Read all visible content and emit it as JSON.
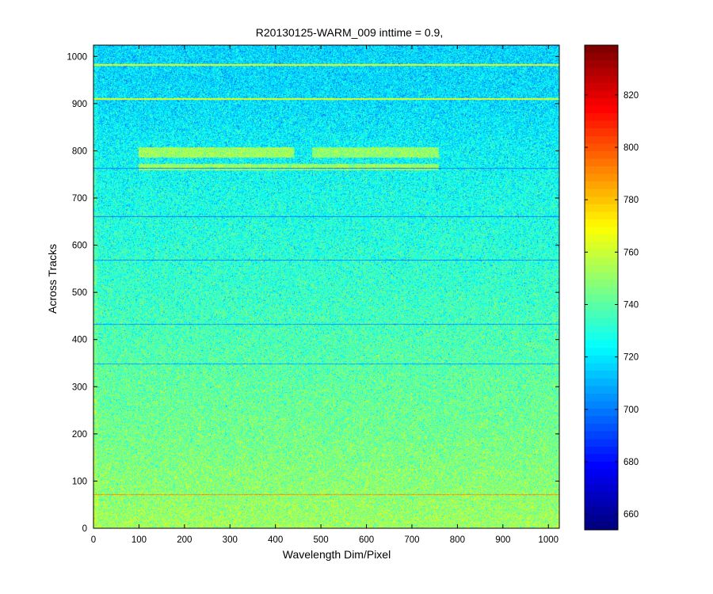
{
  "chart_data": {
    "type": "heatmap",
    "title": "R20130125-WARM_009 inttime = 0.9,",
    "xlabel": "Wavelength Dim/Pixel",
    "ylabel": "Across Tracks",
    "xlim": [
      0,
      1024
    ],
    "ylim": [
      0,
      1024
    ],
    "x_ticks": [
      "0",
      "100",
      "200",
      "300",
      "400",
      "500",
      "600",
      "700",
      "800",
      "900",
      "1000"
    ],
    "y_ticks": [
      "0",
      "100",
      "200",
      "300",
      "400",
      "500",
      "600",
      "700",
      "800",
      "900",
      "1000"
    ],
    "colormap": "jet",
    "clim": [
      654,
      839
    ],
    "colorbar_ticks": [
      "660",
      "680",
      "700",
      "720",
      "740",
      "760",
      "780",
      "800",
      "820"
    ],
    "rows_mean_profile": [
      {
        "y": 0,
        "value": 752
      },
      {
        "y": 100,
        "value": 748
      },
      {
        "y": 200,
        "value": 744
      },
      {
        "y": 300,
        "value": 741
      },
      {
        "y": 400,
        "value": 737
      },
      {
        "y": 500,
        "value": 733
      },
      {
        "y": 600,
        "value": 730
      },
      {
        "y": 700,
        "value": 727
      },
      {
        "y": 800,
        "value": 723
      },
      {
        "y": 900,
        "value": 718
      },
      {
        "y": 1024,
        "value": 716
      }
    ],
    "features": [
      {
        "kind": "bright_band",
        "x": [
          100,
          440
        ],
        "y": [
          785,
          808
        ],
        "value": 752
      },
      {
        "kind": "bright_band",
        "x": [
          480,
          760
        ],
        "y": [
          785,
          808
        ],
        "value": 750
      },
      {
        "kind": "bright_band",
        "x": [
          100,
          760
        ],
        "y": [
          758,
          772
        ],
        "value": 752
      },
      {
        "kind": "dark_row",
        "y": 660,
        "value": 700
      },
      {
        "kind": "dark_row",
        "y": 568,
        "value": 702
      },
      {
        "kind": "dark_row",
        "y": 432,
        "value": 705
      },
      {
        "kind": "dark_row",
        "y": 348,
        "value": 708
      },
      {
        "kind": "dark_row",
        "y": 763,
        "value": 700
      },
      {
        "kind": "bright_row",
        "y": 910,
        "value": 765
      },
      {
        "kind": "bright_row",
        "y": 982,
        "value": 768
      },
      {
        "kind": "bright_row",
        "y": 72,
        "value": 790
      }
    ]
  },
  "colors": {
    "background": "#ffffff",
    "axis": "#000000"
  }
}
